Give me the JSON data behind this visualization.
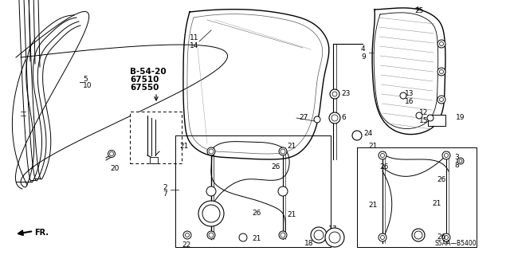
{
  "bg_color": "#ffffff",
  "line_color": "#000000",
  "footer_text": "S5AA—B5400"
}
